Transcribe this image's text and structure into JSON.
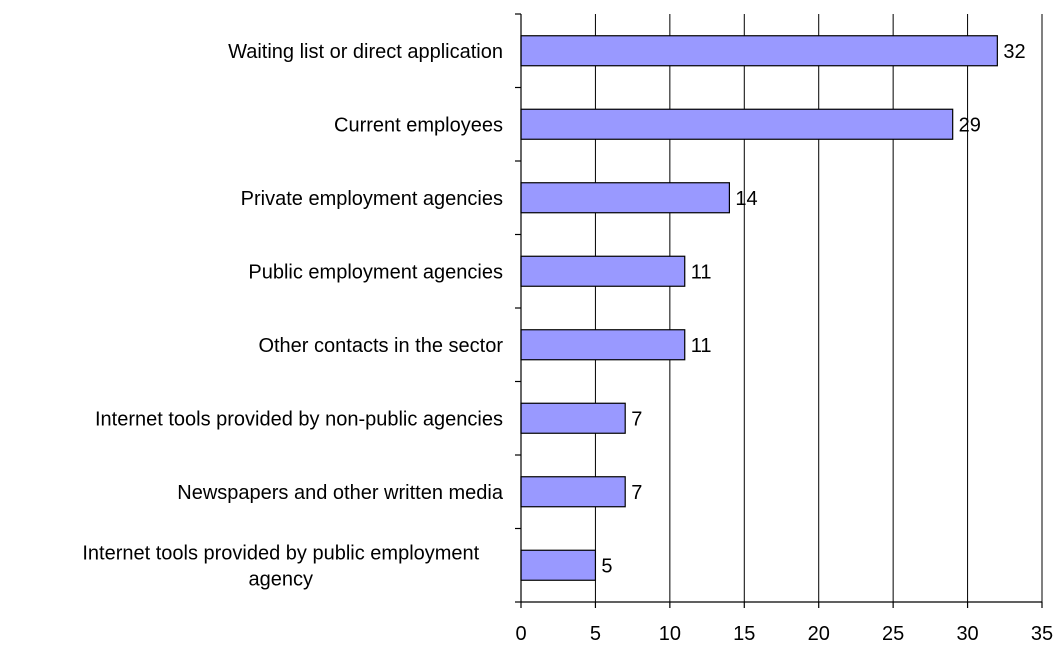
{
  "chart_data": {
    "type": "bar",
    "orientation": "horizontal",
    "categories": [
      "Waiting list or direct application",
      "Current employees",
      "Private employment agencies",
      "Public employment agencies",
      "Other contacts in the sector",
      "Internet tools  provided by non-public agencies",
      "Newspapers and other written media",
      "Internet tools provided by public employment agency"
    ],
    "category_label_lines": [
      [
        "Waiting list or direct application"
      ],
      [
        "Current employees"
      ],
      [
        "Private employment agencies"
      ],
      [
        "Public employment agencies"
      ],
      [
        "Other contacts in the sector"
      ],
      [
        "Internet tools  provided by non-public agencies"
      ],
      [
        "Newspapers and other written media"
      ],
      [
        "Internet tools provided by public employment",
        "agency"
      ]
    ],
    "values": [
      32,
      29,
      14,
      11,
      11,
      7,
      7,
      5
    ],
    "xlim": [
      0,
      35
    ],
    "xticks": [
      0,
      5,
      10,
      15,
      20,
      25,
      30,
      35
    ],
    "grid": "vertical",
    "bar_color": "#9999ff",
    "data_labels": true,
    "title": "",
    "xlabel": "",
    "ylabel": ""
  }
}
